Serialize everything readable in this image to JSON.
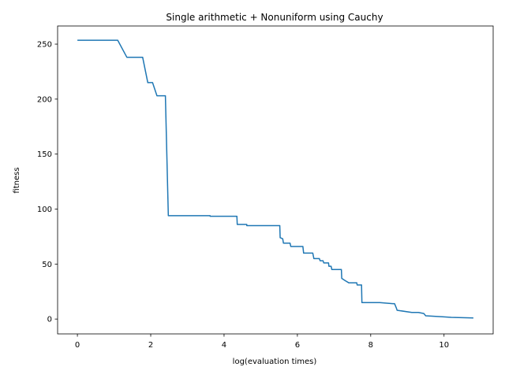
{
  "chart_data": {
    "type": "line",
    "title": "Single arithmetic + Nonuniform using Cauchy",
    "xlabel": "log(evaluation times)",
    "ylabel": "fitness",
    "xlim": [
      -0.54,
      11.34
    ],
    "ylim": [
      -13.5,
      266.5
    ],
    "xticks": [
      0,
      2,
      4,
      6,
      8,
      10
    ],
    "yticks": [
      0,
      50,
      100,
      150,
      200,
      250
    ],
    "grid": false,
    "line_color": "#1f77b4",
    "series": [
      {
        "x": [
          0,
          1.1,
          1.35,
          1.78,
          1.92,
          2.05,
          2.17,
          2.4,
          2.48,
          3.62,
          3.62,
          4.35,
          4.36,
          4.62,
          4.62,
          5.52,
          5.53,
          5.6,
          5.62,
          5.8,
          5.82,
          6.15,
          6.17,
          6.42,
          6.45,
          6.6,
          6.62,
          6.7,
          6.72,
          6.85,
          6.86,
          6.92,
          6.94,
          7.2,
          7.21,
          7.3,
          7.4,
          7.62,
          7.63,
          7.75,
          7.76,
          8.25,
          8.6,
          8.65,
          8.7,
          8.72,
          9.12,
          9.3,
          9.45,
          9.5,
          10.0,
          10.2,
          10.8
        ],
        "y": [
          253.5,
          253.5,
          238,
          238,
          215,
          215,
          203,
          203,
          94,
          94,
          93.5,
          93.5,
          86,
          86,
          85,
          85,
          74,
          73,
          69,
          69,
          66,
          66,
          60,
          60,
          55,
          55,
          53,
          53,
          51,
          51,
          48,
          48,
          45,
          45,
          37,
          35,
          33,
          33,
          31,
          31,
          15,
          15,
          14,
          14,
          10,
          8,
          6,
          6,
          5,
          3,
          2,
          1.5,
          1
        ]
      }
    ]
  }
}
